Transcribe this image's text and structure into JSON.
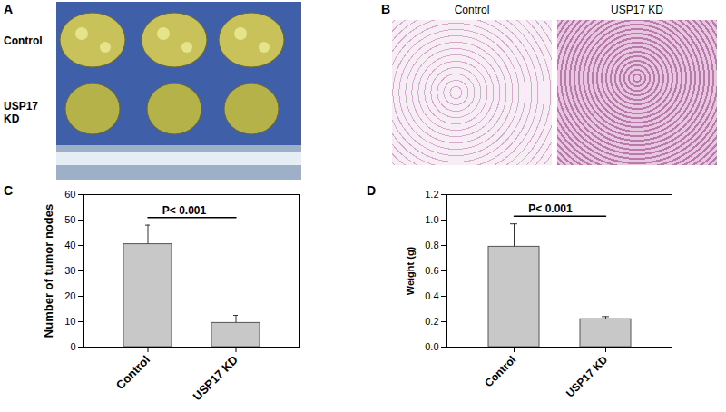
{
  "photos": [
    {
      "panel": "A",
      "row_labels": [
        "Control",
        "USP17 KD"
      ]
    },
    {
      "panel": "B",
      "column_labels": [
        "Control",
        "USP17 KD"
      ]
    }
  ],
  "chart_data": [
    {
      "type": "bar",
      "panel": "C",
      "y_label": "Number of tumor nodes",
      "categories": [
        "Control",
        "USP17 KD"
      ],
      "values": [
        40.5,
        9.5
      ],
      "errors": [
        7.5,
        3
      ],
      "color": "#c8c8c8",
      "ylim": [
        0,
        60
      ],
      "yticks": [
        0,
        10,
        20,
        30,
        40,
        50,
        60
      ],
      "annotation": "P< 0.001"
    },
    {
      "type": "bar",
      "panel": "D",
      "y_label": "Weight (g)",
      "categories": [
        "Control",
        "USP17 KD"
      ],
      "values": [
        0.79,
        0.22
      ],
      "errors": [
        0.18,
        0.02
      ],
      "color": "#c8c8c8",
      "ylim": [
        0,
        1.2
      ],
      "yticks": [
        {
          "value": 0,
          "label": "0.0"
        },
        0.2,
        0.4,
        0.6,
        0.8,
        {
          "value": 1,
          "label": "1.0"
        },
        1.2
      ],
      "annotation": "P< 0.001"
    }
  ]
}
